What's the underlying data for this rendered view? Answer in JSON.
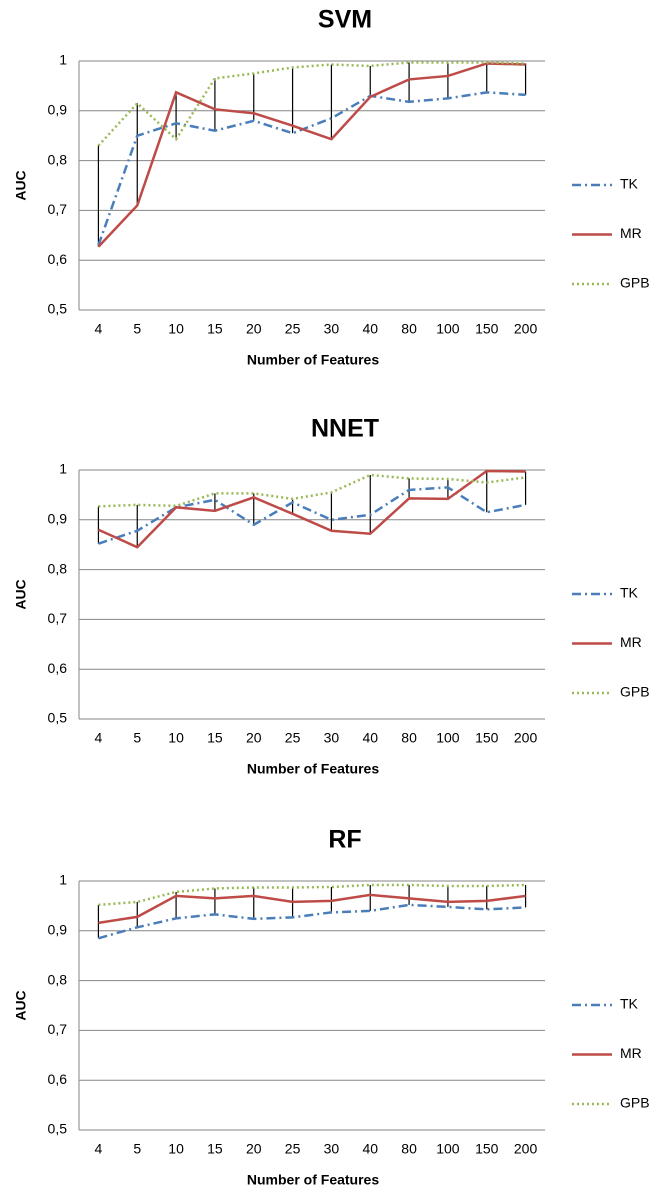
{
  "chart_data": [
    {
      "type": "line",
      "title": "SVM",
      "xlabel": "Number of Features",
      "ylabel": "AUC",
      "categories": [
        "4",
        "5",
        "10",
        "15",
        "20",
        "25",
        "30",
        "40",
        "80",
        "100",
        "150",
        "200"
      ],
      "series": [
        {
          "name": "TK",
          "color": "#4a7ebb",
          "style": "dash-dot",
          "values": [
            0.63,
            0.85,
            0.875,
            0.86,
            0.88,
            0.855,
            0.885,
            0.93,
            0.918,
            0.925,
            0.937,
            0.932
          ]
        },
        {
          "name": "MR",
          "color": "#be4b48",
          "style": "solid",
          "values": [
            0.627,
            0.71,
            0.937,
            0.903,
            0.895,
            0.87,
            0.843,
            0.928,
            0.963,
            0.97,
            0.995,
            0.993
          ]
        },
        {
          "name": "GPB",
          "color": "#98b954",
          "style": "dotted",
          "values": [
            0.83,
            0.915,
            0.843,
            0.965,
            0.975,
            0.987,
            0.993,
            0.99,
            0.997,
            0.997,
            0.997,
            0.995
          ]
        }
      ],
      "ylim": [
        0.5,
        1
      ],
      "yticks": [
        {
          "value": 0.5,
          "label": "0,5"
        },
        {
          "value": 0.6,
          "label": "0,6"
        },
        {
          "value": 0.7,
          "label": "0,7"
        },
        {
          "value": 0.8,
          "label": "0,8"
        },
        {
          "value": 0.9,
          "label": "0,9"
        },
        1
      ],
      "grid": true,
      "high_low_lines": true,
      "legend": "right"
    },
    {
      "type": "line",
      "title": "NNET",
      "xlabel": "Number of Features",
      "ylabel": "AUC",
      "categories": [
        "4",
        "5",
        "10",
        "15",
        "20",
        "25",
        "30",
        "40",
        "80",
        "100",
        "150",
        "200"
      ],
      "series": [
        {
          "name": "TK",
          "color": "#4a7ebb",
          "style": "dash-dot",
          "values": [
            0.852,
            0.878,
            0.925,
            0.94,
            0.89,
            0.935,
            0.9,
            0.91,
            0.96,
            0.965,
            0.915,
            0.93
          ]
        },
        {
          "name": "MR",
          "color": "#be4b48",
          "style": "solid",
          "values": [
            0.88,
            0.845,
            0.925,
            0.918,
            0.945,
            0.912,
            0.878,
            0.872,
            0.943,
            0.942,
            0.998,
            0.997
          ]
        },
        {
          "name": "GPB",
          "color": "#98b954",
          "style": "dotted",
          "values": [
            0.927,
            0.93,
            0.928,
            0.953,
            0.953,
            0.942,
            0.955,
            0.99,
            0.983,
            0.982,
            0.975,
            0.985
          ]
        }
      ],
      "ylim": [
        0.5,
        1
      ],
      "yticks": [
        {
          "value": 0.5,
          "label": "0,5"
        },
        {
          "value": 0.6,
          "label": "0,6"
        },
        {
          "value": 0.7,
          "label": "0,7"
        },
        {
          "value": 0.8,
          "label": "0,8"
        },
        {
          "value": 0.9,
          "label": "0,9"
        },
        1
      ],
      "grid": true,
      "high_low_lines": true,
      "legend": "right"
    },
    {
      "type": "line",
      "title": "RF",
      "xlabel": "Number of Features",
      "ylabel": "AUC",
      "categories": [
        "4",
        "5",
        "10",
        "15",
        "20",
        "25",
        "30",
        "40",
        "80",
        "100",
        "150",
        "200"
      ],
      "series": [
        {
          "name": "TK",
          "color": "#4a7ebb",
          "style": "dash-dot",
          "values": [
            0.885,
            0.907,
            0.925,
            0.933,
            0.924,
            0.927,
            0.937,
            0.94,
            0.952,
            0.948,
            0.943,
            0.947
          ]
        },
        {
          "name": "MR",
          "color": "#be4b48",
          "style": "solid",
          "values": [
            0.916,
            0.928,
            0.97,
            0.965,
            0.97,
            0.958,
            0.96,
            0.972,
            0.965,
            0.958,
            0.96,
            0.97
          ]
        },
        {
          "name": "GPB",
          "color": "#98b954",
          "style": "dotted",
          "values": [
            0.952,
            0.958,
            0.978,
            0.985,
            0.987,
            0.987,
            0.988,
            0.992,
            0.992,
            0.99,
            0.99,
            0.992
          ]
        }
      ],
      "ylim": [
        0.5,
        1
      ],
      "yticks": [
        {
          "value": 0.5,
          "label": "0,5"
        },
        {
          "value": 0.6,
          "label": "0,6"
        },
        {
          "value": 0.7,
          "label": "0,7"
        },
        {
          "value": 0.8,
          "label": "0,8"
        },
        {
          "value": 0.9,
          "label": "0,9"
        },
        1
      ],
      "grid": true,
      "high_low_lines": true,
      "legend": "right"
    }
  ]
}
